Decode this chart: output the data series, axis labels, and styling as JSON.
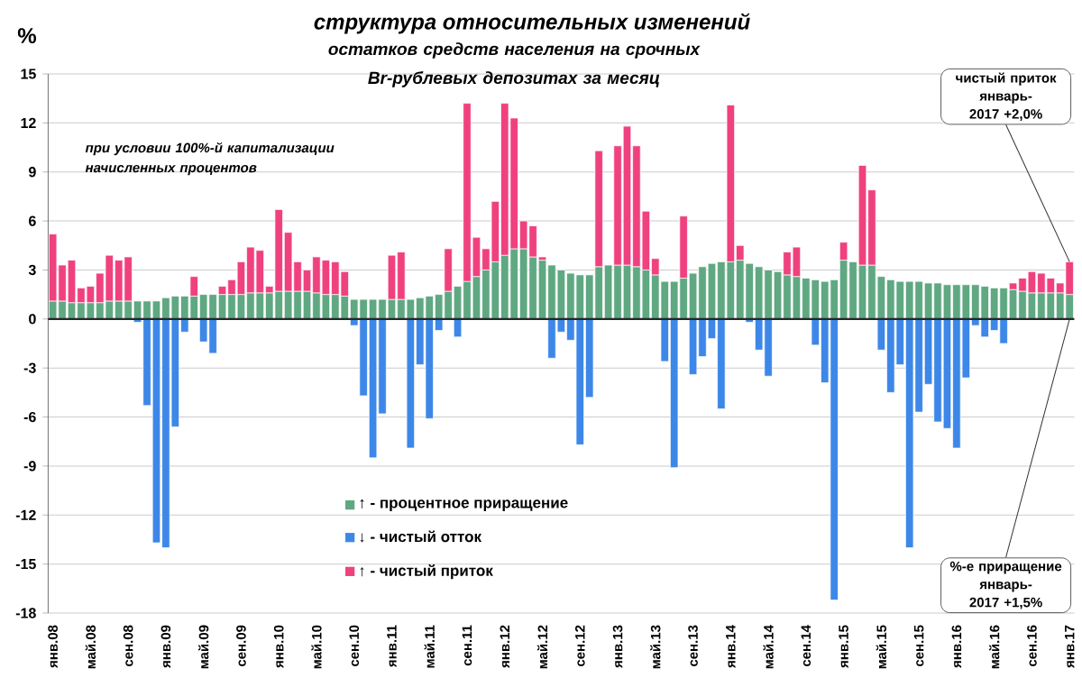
{
  "chart_data": {
    "type": "bar",
    "title": "структура относительных изменений",
    "subtitle": "остатков средств населения на срочных Br-рублевых депозитах за месяц",
    "ylabel": "%",
    "categories": [
      "янв.08",
      null,
      null,
      null,
      "май.08",
      null,
      null,
      null,
      "сен.08",
      null,
      null,
      null,
      "янв.09",
      null,
      null,
      null,
      "май.09",
      null,
      null,
      null,
      "сен.09",
      null,
      null,
      null,
      "янв.10",
      null,
      null,
      null,
      "май.10",
      null,
      null,
      null,
      "сен.10",
      null,
      null,
      null,
      "янв.11",
      null,
      null,
      null,
      "май.11",
      null,
      null,
      null,
      "сен.11",
      null,
      null,
      null,
      "янв.12",
      null,
      null,
      null,
      "май.12",
      null,
      null,
      null,
      "сен.12",
      null,
      null,
      null,
      "янв.13",
      null,
      null,
      null,
      "май.13",
      null,
      null,
      null,
      "сен.13",
      null,
      null,
      null,
      "янв.14",
      null,
      null,
      null,
      "май.14",
      null,
      null,
      null,
      "сен.14",
      null,
      null,
      null,
      "янв.15",
      null,
      null,
      null,
      "май.15",
      null,
      null,
      null,
      "сен.15",
      null,
      null,
      null,
      "янв.16",
      null,
      null,
      null,
      "май.16",
      null,
      null,
      null,
      "сен.16",
      null,
      null,
      null,
      "янв.17"
    ],
    "series": [
      {
        "name": "↑ - процентное приращение",
        "color": "#5fa882",
        "values": [
          1.1,
          1.1,
          1.0,
          1.0,
          1.0,
          1.0,
          1.1,
          1.1,
          1.1,
          1.1,
          1.1,
          1.1,
          1.3,
          1.4,
          1.4,
          1.4,
          1.5,
          1.5,
          1.5,
          1.5,
          1.5,
          1.6,
          1.6,
          1.6,
          1.7,
          1.7,
          1.7,
          1.7,
          1.6,
          1.5,
          1.5,
          1.4,
          1.2,
          1.2,
          1.2,
          1.2,
          1.2,
          1.2,
          1.2,
          1.3,
          1.4,
          1.5,
          1.7,
          2.0,
          2.3,
          2.6,
          3.0,
          3.5,
          3.9,
          4.3,
          4.3,
          3.8,
          3.6,
          3.3,
          3.0,
          2.8,
          2.7,
          2.7,
          3.2,
          3.3,
          3.3,
          3.3,
          3.2,
          3.0,
          2.7,
          2.3,
          2.3,
          2.5,
          2.8,
          3.2,
          3.4,
          3.5,
          3.5,
          3.6,
          3.4,
          3.2,
          3.0,
          2.9,
          2.7,
          2.6,
          2.5,
          2.4,
          2.3,
          2.4,
          3.6,
          3.5,
          3.3,
          3.3,
          2.6,
          2.4,
          2.3,
          2.3,
          2.3,
          2.2,
          2.2,
          2.1,
          2.1,
          2.1,
          2.1,
          2.0,
          1.9,
          1.9,
          1.8,
          1.7,
          1.6,
          1.6,
          1.6,
          1.6,
          1.5
        ]
      },
      {
        "name": "↓ - чистый отток",
        "color": "#3d87e8",
        "values": [
          null,
          null,
          null,
          null,
          null,
          null,
          null,
          null,
          null,
          -0.2,
          -5.3,
          -13.7,
          -14.0,
          -6.6,
          -0.8,
          null,
          -1.4,
          -2.1,
          null,
          null,
          null,
          null,
          null,
          null,
          null,
          null,
          null,
          null,
          null,
          null,
          null,
          null,
          -0.4,
          -4.7,
          -8.5,
          -5.8,
          null,
          null,
          -7.9,
          -2.8,
          -6.1,
          -0.7,
          null,
          -1.1,
          null,
          null,
          null,
          null,
          null,
          null,
          null,
          null,
          null,
          -2.4,
          -0.8,
          -1.3,
          -7.7,
          -4.8,
          null,
          null,
          null,
          null,
          null,
          null,
          null,
          -2.6,
          -9.1,
          null,
          -3.4,
          -2.3,
          -1.2,
          -5.5,
          null,
          null,
          -0.2,
          -1.9,
          -3.5,
          null,
          null,
          null,
          null,
          -1.6,
          -3.9,
          -17.2,
          null,
          null,
          null,
          null,
          -1.9,
          -4.5,
          -2.8,
          -14.0,
          -5.7,
          -4.0,
          -6.3,
          -6.7,
          -7.9,
          -3.6,
          -0.4,
          -1.1,
          -0.7,
          -1.5,
          null,
          null,
          null,
          null,
          null,
          null,
          null
        ]
      },
      {
        "name": "↑ - чистый приток",
        "color": "#f0417f",
        "values": [
          4.1,
          2.2,
          2.6,
          0.9,
          1.0,
          1.8,
          2.8,
          2.5,
          2.7,
          null,
          null,
          null,
          null,
          null,
          null,
          1.2,
          null,
          null,
          0.5,
          0.9,
          2.0,
          2.8,
          2.6,
          0.4,
          5.0,
          3.6,
          1.8,
          1.3,
          2.2,
          2.1,
          2.0,
          1.5,
          null,
          null,
          null,
          null,
          2.7,
          2.9,
          null,
          null,
          null,
          null,
          2.6,
          null,
          10.9,
          2.4,
          1.3,
          3.7,
          9.3,
          8.0,
          1.7,
          1.9,
          0.2,
          null,
          null,
          null,
          null,
          null,
          7.1,
          null,
          7.3,
          8.5,
          7.4,
          3.6,
          1.0,
          null,
          null,
          3.8,
          null,
          null,
          null,
          null,
          9.6,
          0.9,
          null,
          null,
          null,
          null,
          1.4,
          1.8,
          null,
          null,
          null,
          null,
          1.1,
          null,
          6.1,
          4.6,
          null,
          null,
          null,
          null,
          null,
          null,
          null,
          null,
          null,
          null,
          null,
          null,
          null,
          null,
          0.4,
          0.8,
          1.3,
          1.2,
          0.9,
          0.6,
          2.0
        ]
      }
    ],
    "stacked": true,
    "ylim": [
      -18,
      15
    ],
    "yticks": [
      -18,
      -15,
      -12,
      -9,
      -6,
      -3,
      0,
      3,
      6,
      9,
      12,
      15
    ],
    "grid": "y",
    "legend": "bottom",
    "annotations": [
      "при условии 100%-й капитализации начисленных процентов",
      {
        "text": "чистый приток январь-2017 +2,0%",
        "x": "янв.17",
        "y": 3.5
      },
      {
        "text": "%-е приращение январь-2017 +1,5%",
        "x": "янв.17",
        "y": 0
      }
    ]
  }
}
